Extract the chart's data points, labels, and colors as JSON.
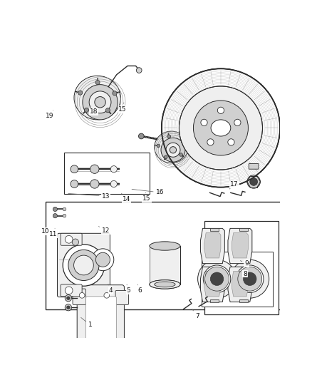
{
  "bg_color": "#ffffff",
  "lc": "#2a2a2a",
  "lg": "#bbbbbb",
  "mg": "#888888",
  "dg": "#444444",
  "fl": "#efefef",
  "fm": "#d0d0d0",
  "fd": "#909090",
  "figsize": [
    4.38,
    5.33
  ],
  "dpi": 100,
  "annotations": [
    [
      1,
      0.165,
      0.925,
      0.21,
      0.955
    ],
    [
      4,
      0.285,
      0.815,
      0.295,
      0.838
    ],
    [
      5,
      0.36,
      0.81,
      0.37,
      0.838
    ],
    [
      6,
      0.405,
      0.81,
      0.415,
      0.838
    ],
    [
      7,
      0.63,
      0.895,
      0.655,
      0.925
    ],
    [
      8,
      0.83,
      0.77,
      0.855,
      0.78
    ],
    [
      9,
      0.835,
      0.735,
      0.86,
      0.745
    ],
    [
      10,
      0.033,
      0.625,
      0.022,
      0.635
    ],
    [
      11,
      0.063,
      0.625,
      0.055,
      0.645
    ],
    [
      12,
      0.245,
      0.618,
      0.275,
      0.632
    ],
    [
      13,
      0.11,
      0.505,
      0.275,
      0.515
    ],
    [
      14,
      0.34,
      0.505,
      0.36,
      0.525
    ],
    [
      15,
      0.44,
      0.502,
      0.445,
      0.523
    ],
    [
      16,
      0.375,
      0.49,
      0.5,
      0.502
    ],
    [
      17,
      0.79,
      0.49,
      0.81,
      0.475
    ],
    [
      18,
      0.21,
      0.205,
      0.225,
      0.225
    ],
    [
      19,
      0.06,
      0.215,
      0.042,
      0.24
    ],
    [
      15,
      0.35,
      0.195,
      0.345,
      0.218
    ]
  ]
}
